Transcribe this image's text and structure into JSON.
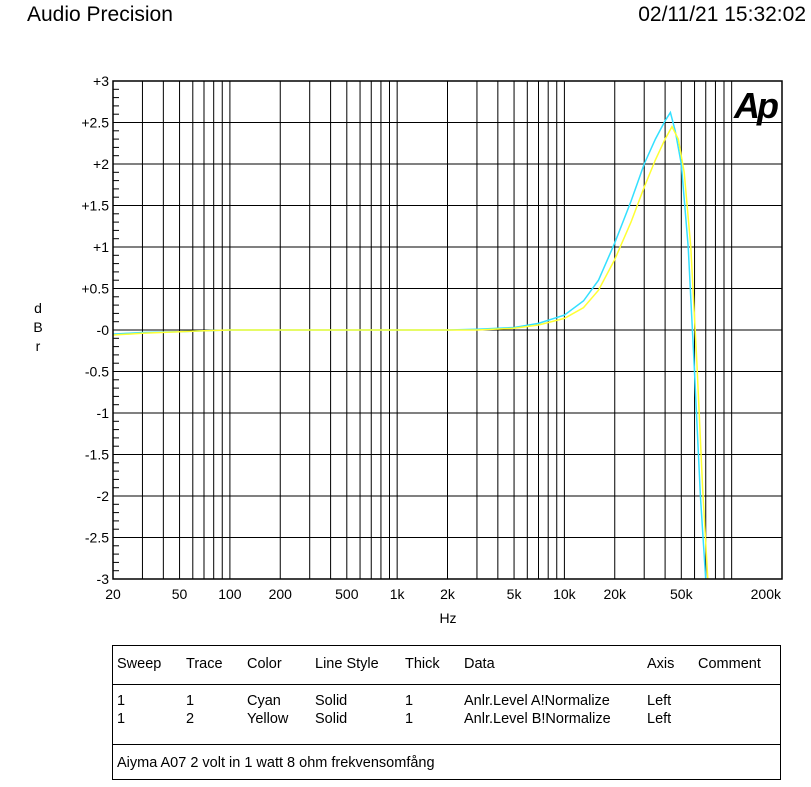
{
  "header": {
    "brand": "Audio Precision",
    "timestamp": "02/11/21 15:32:02"
  },
  "logo": {
    "text": "Ap",
    "color": "#1a1aff"
  },
  "chart_data": {
    "type": "line",
    "xlabel": "Hz",
    "ylabel": "dBr",
    "xscale": "log",
    "xlim": [
      20,
      200000
    ],
    "ylim": [
      -3,
      3
    ],
    "grid": true,
    "x_tick_labels": [
      "20",
      "50",
      "100",
      "200",
      "500",
      "1k",
      "2k",
      "5k",
      "10k",
      "20k",
      "50k",
      "200k"
    ],
    "x_tick_values": [
      20,
      50,
      100,
      200,
      500,
      1000,
      2000,
      5000,
      10000,
      20000,
      50000,
      200000
    ],
    "y_tick_labels": [
      "+3",
      "+2.5",
      "+2",
      "+1.5",
      "+1",
      "+0.5",
      "-0",
      "-0.5",
      "-1",
      "-1.5",
      "-2",
      "-2.5",
      "-3"
    ],
    "y_tick_values": [
      3,
      2.5,
      2,
      1.5,
      1,
      0.5,
      0,
      -0.5,
      -1,
      -1.5,
      -2,
      -2.5,
      -3
    ],
    "series": [
      {
        "color": "#33e0ff",
        "points": [
          [
            20,
            -0.05
          ],
          [
            30,
            -0.03
          ],
          [
            50,
            -0.02
          ],
          [
            70,
            -0.01
          ],
          [
            100,
            0
          ],
          [
            200,
            0
          ],
          [
            500,
            0
          ],
          [
            1000,
            0
          ],
          [
            2000,
            0
          ],
          [
            3000,
            0.01
          ],
          [
            5000,
            0.03
          ],
          [
            7000,
            0.08
          ],
          [
            10000,
            0.18
          ],
          [
            13000,
            0.35
          ],
          [
            16000,
            0.6
          ],
          [
            20000,
            1.05
          ],
          [
            25000,
            1.55
          ],
          [
            30000,
            2.0
          ],
          [
            35000,
            2.3
          ],
          [
            40000,
            2.52
          ],
          [
            43000,
            2.62
          ],
          [
            46000,
            2.4
          ],
          [
            50000,
            2.0
          ],
          [
            55000,
            1.0
          ],
          [
            60000,
            -0.5
          ],
          [
            65000,
            -2.0
          ],
          [
            70000,
            -3.0
          ]
        ]
      },
      {
        "color": "#ffff33",
        "points": [
          [
            20,
            -0.06
          ],
          [
            30,
            -0.04
          ],
          [
            50,
            -0.02
          ],
          [
            70,
            -0.01
          ],
          [
            100,
            0
          ],
          [
            200,
            0
          ],
          [
            500,
            0
          ],
          [
            1000,
            0
          ],
          [
            2000,
            0
          ],
          [
            3000,
            0.0
          ],
          [
            5000,
            0.02
          ],
          [
            7000,
            0.06
          ],
          [
            10000,
            0.14
          ],
          [
            13000,
            0.27
          ],
          [
            16000,
            0.48
          ],
          [
            20000,
            0.85
          ],
          [
            25000,
            1.3
          ],
          [
            30000,
            1.72
          ],
          [
            35000,
            2.05
          ],
          [
            40000,
            2.3
          ],
          [
            44000,
            2.45
          ],
          [
            48000,
            2.3
          ],
          [
            52000,
            1.9
          ],
          [
            57000,
            1.0
          ],
          [
            62000,
            -0.4
          ],
          [
            67000,
            -1.9
          ],
          [
            72000,
            -3.0
          ]
        ]
      }
    ]
  },
  "legend": {
    "headers": [
      "Sweep",
      "Trace",
      "Color",
      "Line Style",
      "Thick",
      "Data",
      "Axis",
      "Comment"
    ],
    "rows": [
      [
        "1",
        "1",
        "Cyan",
        "Solid",
        "1",
        "Anlr.Level A!Normalize",
        "Left",
        ""
      ],
      [
        "1",
        "2",
        "Yellow",
        "Solid",
        "1",
        "Anlr.Level B!Normalize",
        "Left",
        ""
      ]
    ],
    "note": "Aiyma A07 2 volt in 1 watt 8 ohm frekvensomfång"
  }
}
